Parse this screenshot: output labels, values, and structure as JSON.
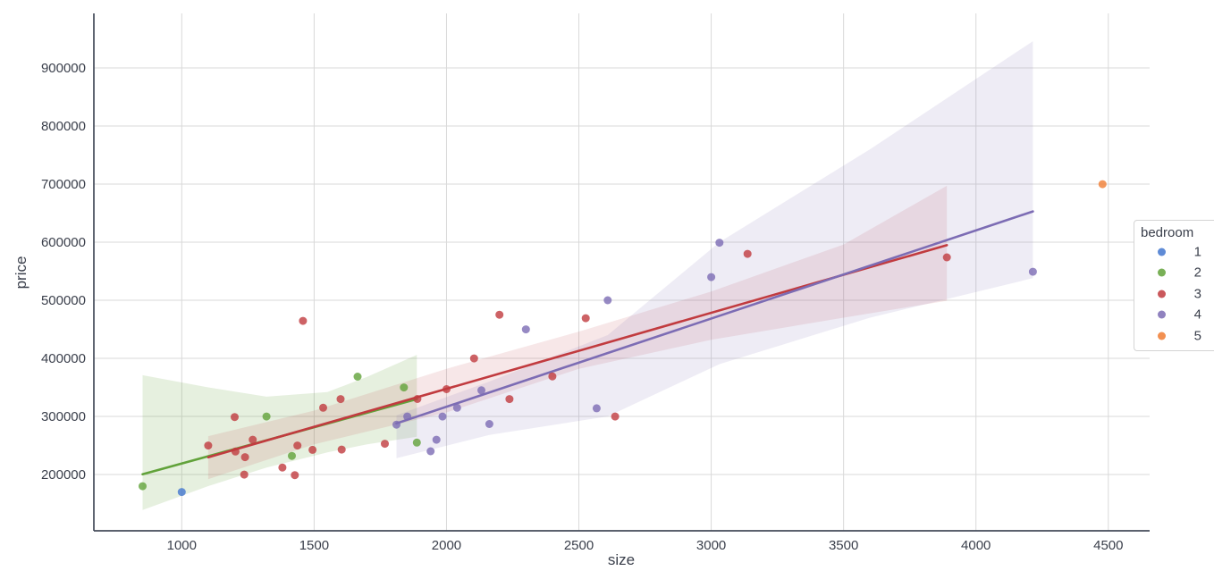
{
  "figure": {
    "background": "#ffffff",
    "grid_color": "#d9d9d9",
    "spine_color": "#444b5a",
    "text_color": "#3a3f4b"
  },
  "chart_data": {
    "type": "scatter",
    "subtype": "regression-scatter (seaborn lmplot style)",
    "title": "",
    "xlabel": "size",
    "ylabel": "price",
    "grid": true,
    "x_ticks": [
      1000,
      1500,
      2000,
      2500,
      3000,
      3500,
      4000,
      4500
    ],
    "y_ticks": [
      200000,
      300000,
      400000,
      500000,
      600000,
      700000,
      800000,
      900000
    ],
    "x_range": [
      668,
      4656
    ],
    "y_range": [
      103077,
      993846
    ],
    "legend": {
      "title": "bedroom",
      "position": "right",
      "entries": [
        {
          "label": "1",
          "color": "#4377cf"
        },
        {
          "label": "2",
          "color": "#61a23a"
        },
        {
          "label": "3",
          "color": "#c13b3f"
        },
        {
          "label": "4",
          "color": "#7c6cb4"
        },
        {
          "label": "5",
          "color": "#f07d33"
        }
      ]
    },
    "series": [
      {
        "name": "1",
        "color": "#4377cf",
        "points": [
          [
            1000,
            169900
          ]
        ],
        "regression": null,
        "ci": null,
        "ci_opacity": 0
      },
      {
        "name": "2",
        "color": "#61a23a",
        "points": [
          [
            852,
            179900
          ],
          [
            1320,
            299900
          ],
          [
            1416,
            232000
          ],
          [
            1664,
            368500
          ],
          [
            1839,
            349900
          ],
          [
            1888,
            255000
          ]
        ],
        "regression": {
          "x": [
            852,
            1888
          ],
          "y": [
            200470,
            329790
          ]
        },
        "ci": {
          "top": [
            [
              852,
              371000
            ],
            [
              1100,
              350000
            ],
            [
              1320,
              334000
            ],
            [
              1550,
              342000
            ],
            [
              1700,
              368000
            ],
            [
              1888,
              406000
            ]
          ],
          "bottom": [
            [
              852,
              139000
            ],
            [
              1100,
              180000
            ],
            [
              1320,
              212000
            ],
            [
              1550,
              238000
            ],
            [
              1700,
              252000
            ],
            [
              1888,
              265000
            ]
          ]
        },
        "ci_opacity": 0.16
      },
      {
        "name": "3",
        "color": "#c13b3f",
        "points": [
          [
            1100,
            249900
          ],
          [
            1200,
            299000
          ],
          [
            1203,
            239500
          ],
          [
            1236,
            199900
          ],
          [
            1239,
            229900
          ],
          [
            1268,
            259900
          ],
          [
            1380,
            212000
          ],
          [
            1427,
            198999
          ],
          [
            1437,
            249900
          ],
          [
            1458,
            464500
          ],
          [
            1494,
            242500
          ],
          [
            1534,
            314900
          ],
          [
            1600,
            329900
          ],
          [
            1604,
            242900
          ],
          [
            1767,
            252900
          ],
          [
            1890,
            329999
          ],
          [
            2000,
            347000
          ],
          [
            2104,
            399900
          ],
          [
            2200,
            475000
          ],
          [
            2238,
            329900
          ],
          [
            2400,
            369000
          ],
          [
            2526,
            469000
          ],
          [
            2637,
            299900
          ],
          [
            3137,
            579900
          ],
          [
            3890,
            573900
          ]
        ],
        "regression": {
          "x": [
            1100,
            3890
          ],
          "y": [
            229700,
            594900
          ]
        },
        "ci": {
          "top": [
            [
              1100,
              266000
            ],
            [
              1500,
              310000
            ],
            [
              2000,
              382000
            ],
            [
              2500,
              446000
            ],
            [
              3000,
              515000
            ],
            [
              3500,
              596000
            ],
            [
              3890,
              697000
            ]
          ],
          "bottom": [
            [
              1100,
              192000
            ],
            [
              1500,
              252000
            ],
            [
              2000,
              307000
            ],
            [
              2500,
              382000
            ],
            [
              3000,
              432000
            ],
            [
              3500,
              470000
            ],
            [
              3890,
              499000
            ]
          ]
        },
        "ci_opacity": 0.12
      },
      {
        "name": "4",
        "color": "#7c6cb4",
        "points": [
          [
            1811,
            285900
          ],
          [
            1852,
            299900
          ],
          [
            1940,
            239999
          ],
          [
            1962,
            259900
          ],
          [
            1985,
            299900
          ],
          [
            2040,
            314900
          ],
          [
            2132,
            345000
          ],
          [
            2162,
            287000
          ],
          [
            2300,
            449900
          ],
          [
            2567,
            314000
          ],
          [
            2609,
            499998
          ],
          [
            3000,
            539900
          ],
          [
            3031,
            599000
          ],
          [
            4215,
            549000
          ]
        ],
        "regression": {
          "x": [
            1811,
            4215
          ],
          "y": [
            287980,
            652900
          ]
        },
        "ci": {
          "top": [
            [
              1811,
              302000
            ],
            [
              2162,
              360000
            ],
            [
              2609,
              440000
            ],
            [
              3031,
              600000
            ],
            [
              3600,
              760000
            ],
            [
              4215,
              946000
            ]
          ],
          "bottom": [
            [
              1811,
              228000
            ],
            [
              2162,
              268000
            ],
            [
              2609,
              300000
            ],
            [
              3031,
              390000
            ],
            [
              3600,
              470000
            ],
            [
              4215,
              538000
            ]
          ]
        },
        "ci_opacity": 0.13
      },
      {
        "name": "5",
        "color": "#f07d33",
        "points": [
          [
            4478,
            699900
          ]
        ],
        "regression": null,
        "ci": null,
        "ci_opacity": 0
      }
    ]
  }
}
